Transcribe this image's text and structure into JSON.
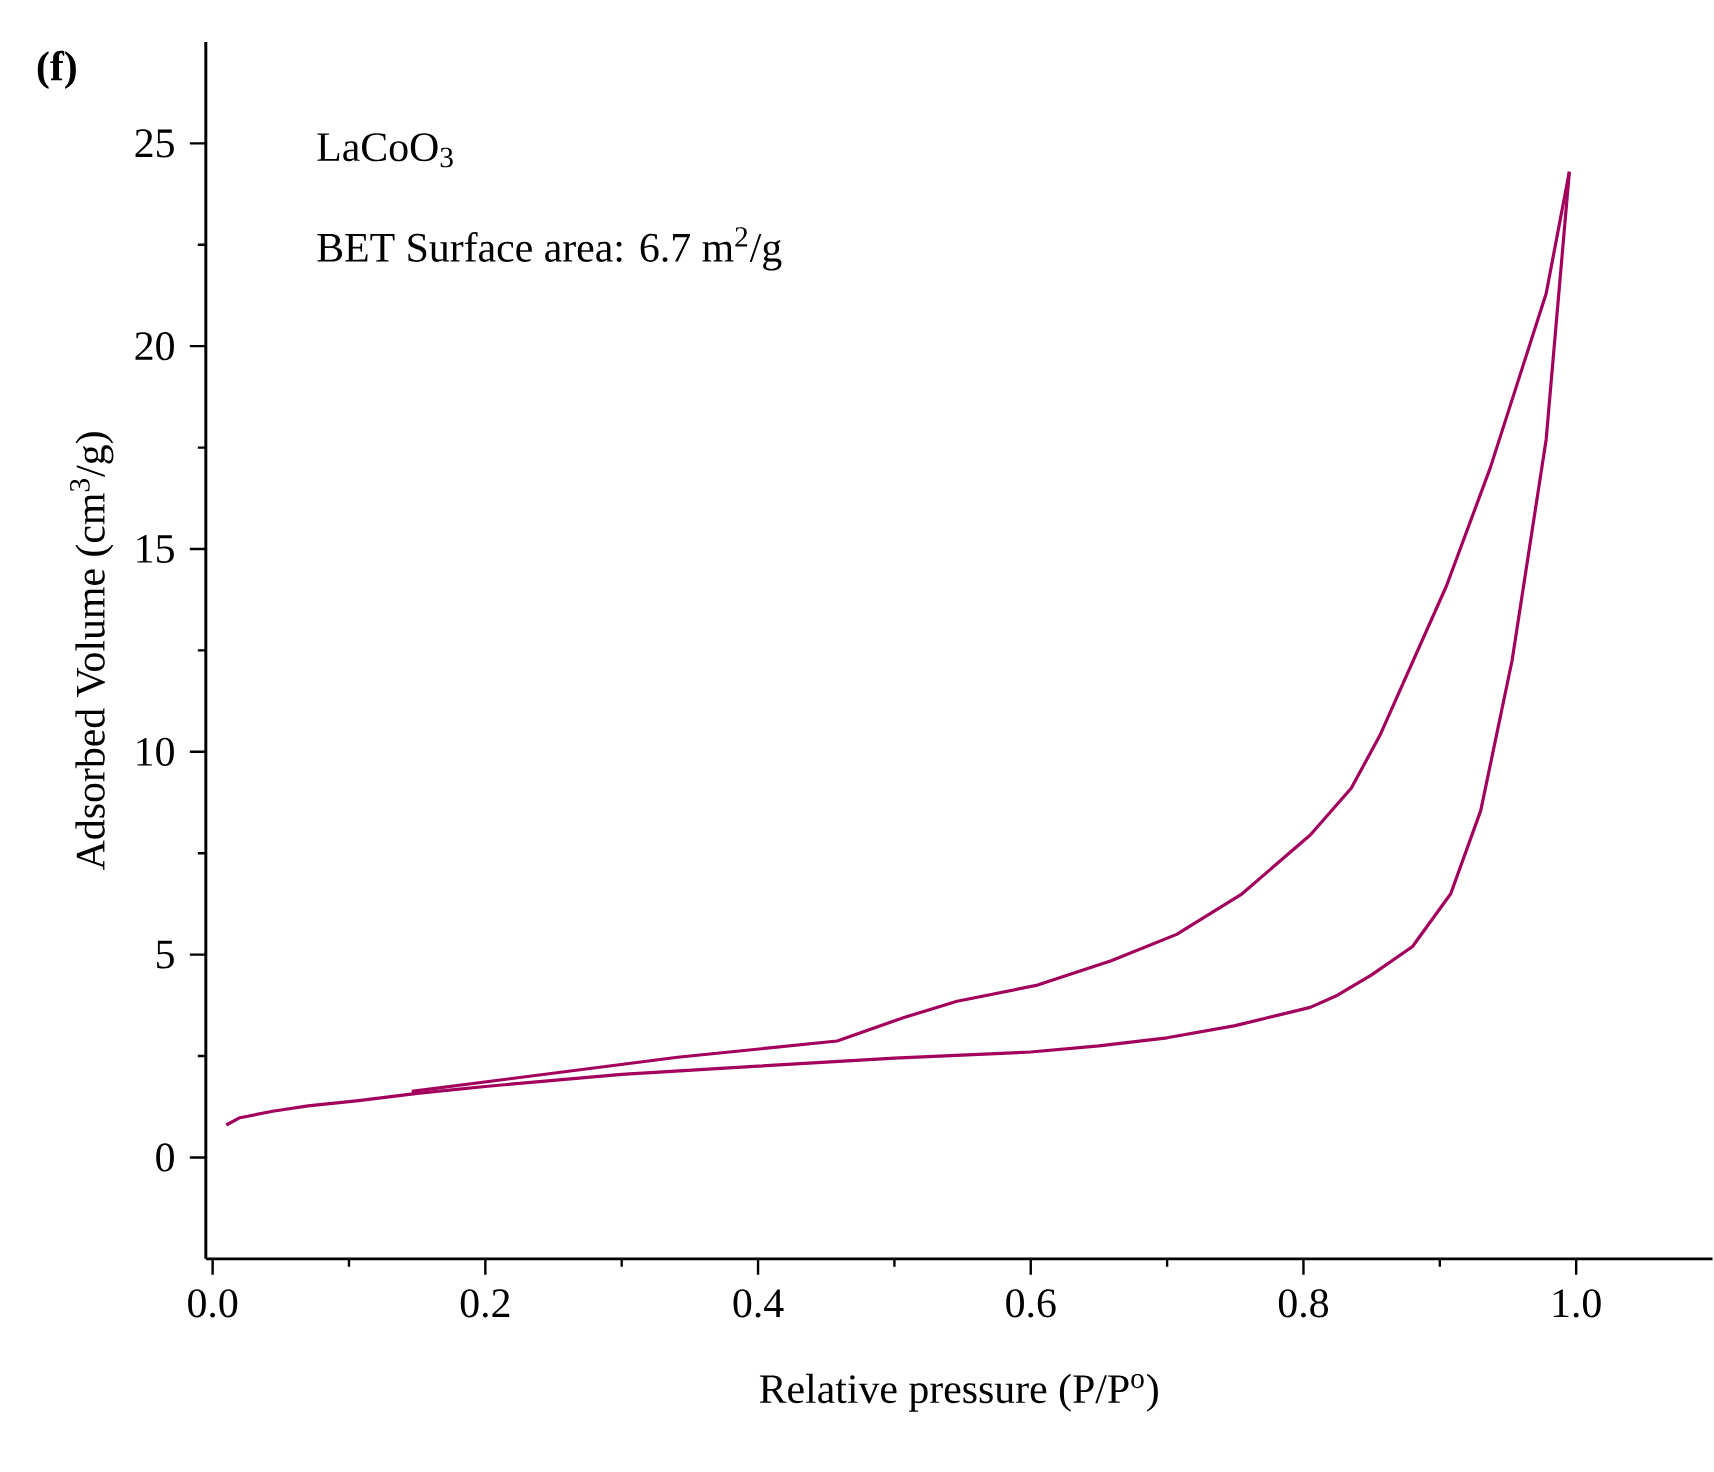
{
  "chart_data": {
    "type": "line",
    "xlabel": "Relative pressure (P/P$^{o}$)",
    "ylabel": "Adsorbed Volume (cm$^{3}$/g)",
    "annotations": [
      "(f)",
      "LaCoO$_{3}$",
      "BET Surface area: 6.7 m$^{2}$/g"
    ],
    "xlim": [
      -0.005,
      1.1
    ],
    "ylim": [
      -2.5,
      27.5
    ],
    "xticks": [
      {
        "value": 0,
        "label": "0.0"
      },
      0.2,
      0.4,
      0.6,
      0.8,
      {
        "value": 1,
        "label": "1.0"
      }
    ],
    "yticks": [
      0,
      5,
      10,
      15,
      20,
      25
    ],
    "grid": false,
    "marker": "none",
    "line_style": "solid",
    "series": [
      {
        "color": "#a2005c",
        "x": [
          0.01,
          0.02,
          0.044,
          0.07,
          0.107,
          0.15,
          0.2,
          0.3,
          0.4,
          0.5,
          0.6,
          0.65,
          0.7,
          0.75,
          0.805,
          0.825,
          0.85,
          0.88,
          0.908,
          0.93,
          0.953,
          0.978,
          0.995
        ],
        "values": [
          0.8,
          0.98,
          1.14,
          1.27,
          1.4,
          1.58,
          1.75,
          2.05,
          2.25,
          2.45,
          2.6,
          2.75,
          2.95,
          3.25,
          3.7,
          4.0,
          4.5,
          5.2,
          6.5,
          8.55,
          12.25,
          17.7,
          24.3
        ]
      },
      {
        "color": "#a2005c",
        "x": [
          0.995,
          0.978,
          0.937,
          0.905,
          0.856,
          0.835,
          0.805,
          0.755,
          0.707,
          0.659,
          0.605,
          0.546,
          0.507,
          0.458,
          0.341,
          0.146
        ],
        "values": [
          24.3,
          21.3,
          17.0,
          14.1,
          10.4,
          9.1,
          7.95,
          6.5,
          5.5,
          4.85,
          4.25,
          3.85,
          3.45,
          2.87,
          2.47,
          1.63
        ]
      }
    ]
  }
}
